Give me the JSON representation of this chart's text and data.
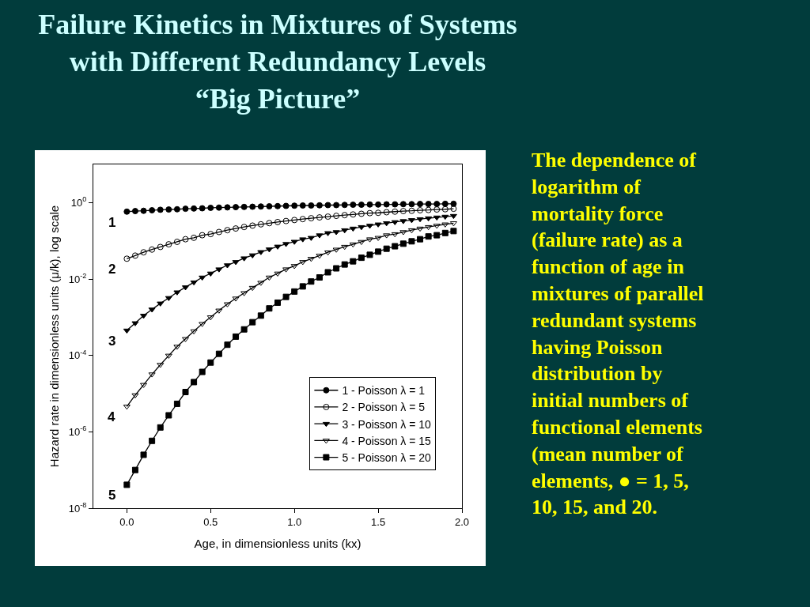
{
  "chart_data": {
    "type": "line",
    "title": "Failure Kinetics in Mixtures of Systems\nwith Different Redundancy Levels\n“Big Picture”",
    "xlabel": "Age, in dimensionless units (kx)",
    "ylabel": "Hazard rate in dimensionless units (μ/k), log scale",
    "x": [
      0,
      0.05,
      0.1,
      0.15,
      0.2,
      0.25,
      0.3,
      0.35,
      0.4,
      0.45,
      0.5,
      0.55,
      0.6,
      0.65,
      0.7,
      0.75,
      0.8,
      0.85,
      0.9,
      0.95,
      1.0,
      1.05,
      1.1,
      1.15,
      1.2,
      1.25,
      1.3,
      1.35,
      1.4,
      1.45,
      1.5,
      1.55,
      1.6,
      1.65,
      1.7,
      1.75,
      1.8,
      1.85,
      1.9,
      1.95
    ],
    "series": [
      {
        "name": "1 - Poisson λ = 1",
        "color": "#000000",
        "marker": "circle",
        "values": [
          0.58,
          0.6,
          0.61,
          0.63,
          0.65,
          0.66,
          0.67,
          0.69,
          0.7,
          0.71,
          0.73,
          0.74,
          0.75,
          0.76,
          0.77,
          0.78,
          0.79,
          0.8,
          0.81,
          0.82,
          0.83,
          0.84,
          0.84,
          0.85,
          0.86,
          0.86,
          0.87,
          0.88,
          0.88,
          0.89,
          0.89,
          0.9,
          0.9,
          0.91,
          0.91,
          0.92,
          0.92,
          0.92,
          0.93,
          0.93
        ]
      },
      {
        "name": "2 - Poisson λ = 5",
        "color": "#000000",
        "marker": "circle-open",
        "values": [
          0.034,
          0.041,
          0.05,
          0.059,
          0.069,
          0.081,
          0.094,
          0.11,
          0.12,
          0.14,
          0.15,
          0.17,
          0.19,
          0.21,
          0.23,
          0.25,
          0.27,
          0.29,
          0.31,
          0.33,
          0.35,
          0.37,
          0.39,
          0.41,
          0.43,
          0.45,
          0.47,
          0.49,
          0.51,
          0.53,
          0.54,
          0.56,
          0.58,
          0.6,
          0.61,
          0.63,
          0.64,
          0.66,
          0.67,
          0.69
        ]
      },
      {
        "name": "3 - Poisson λ = 10",
        "color": "#000000",
        "marker": "triangle-down",
        "values": [
          0.00045,
          0.0007,
          0.0011,
          0.0016,
          0.0023,
          0.0032,
          0.0045,
          0.0061,
          0.0082,
          0.011,
          0.014,
          0.018,
          0.023,
          0.028,
          0.035,
          0.042,
          0.051,
          0.06,
          0.071,
          0.083,
          0.095,
          0.11,
          0.12,
          0.14,
          0.16,
          0.17,
          0.19,
          0.21,
          0.23,
          0.25,
          0.27,
          0.29,
          0.31,
          0.33,
          0.35,
          0.37,
          0.39,
          0.41,
          0.43,
          0.45
        ]
      },
      {
        "name": "4 - Poisson λ = 15",
        "color": "#000000",
        "marker": "triangle-down-open",
        "values": [
          4.6e-06,
          9.1e-06,
          1.7e-05,
          3.2e-05,
          5.7e-05,
          9.9e-05,
          0.00017,
          0.00027,
          0.00043,
          0.00067,
          0.001,
          0.0015,
          0.0022,
          0.0031,
          0.0043,
          0.0059,
          0.008,
          0.011,
          0.014,
          0.018,
          0.022,
          0.028,
          0.034,
          0.041,
          0.05,
          0.059,
          0.07,
          0.081,
          0.094,
          0.11,
          0.12,
          0.14,
          0.15,
          0.17,
          0.19,
          0.21,
          0.23,
          0.25,
          0.27,
          0.29
        ]
      },
      {
        "name": "5 - Poisson λ = 20",
        "color": "#000000",
        "marker": "square",
        "values": [
          4.1e-08,
          1e-07,
          2.5e-07,
          5.8e-07,
          1.3e-06,
          2.7e-06,
          5.4e-06,
          1.1e-05,
          2e-05,
          3.7e-05,
          6.5e-05,
          0.00011,
          0.00019,
          0.00031,
          0.00048,
          0.00074,
          0.0011,
          0.0017,
          0.0024,
          0.0034,
          0.0047,
          0.0064,
          0.0086,
          0.011,
          0.015,
          0.019,
          0.024,
          0.029,
          0.036,
          0.043,
          0.052,
          0.062,
          0.072,
          0.084,
          0.097,
          0.11,
          0.13,
          0.14,
          0.16,
          0.18
        ]
      }
    ],
    "log": "y",
    "xlim": [
      -0.2,
      2.0
    ],
    "xticks": [
      {
        "value": 0,
        "label": "0.0"
      },
      0.5,
      {
        "value": 1,
        "label": "1.0"
      },
      1.5,
      {
        "value": 2,
        "label": "2.0"
      }
    ],
    "ylim": [
      1e-08,
      10
    ],
    "yticks": [
      {
        "value": 1,
        "label": "10$^{0}$"
      },
      {
        "value": 0.01,
        "label": "10$^{-2}$"
      },
      {
        "value": 0.0001,
        "label": "10$^{-4}$"
      },
      {
        "value": 1e-06,
        "label": "10$^{-6}$"
      },
      {
        "value": 1e-08,
        "label": "10$^{-8}$"
      }
    ],
    "legend": "bottom right",
    "line_style": "solid",
    "annotations": [
      "1",
      "2",
      "3",
      "4",
      "5",
      "The dependence of\nlogarithm of\nmortality force\n(failure rate) as a\nfunction of age in\nmixtures of parallel\nredundant systems\nhaving Poisson\ndistribution by\ninitial numbers of\nfunctional elements\n(mean number of\nelements, ● = 1, 5,\n10, 15, and 20."
    ]
  }
}
